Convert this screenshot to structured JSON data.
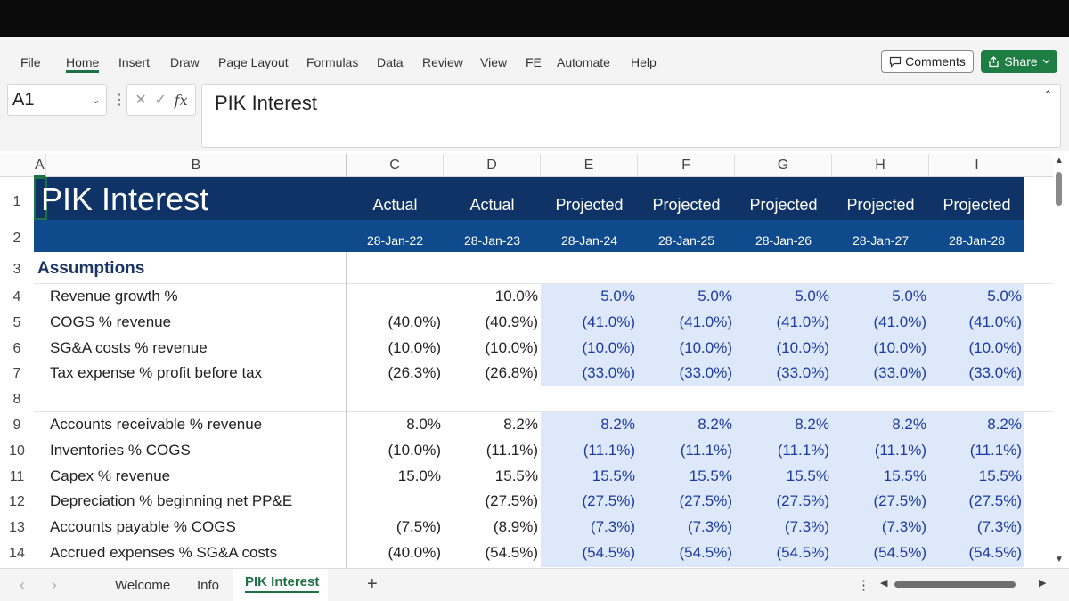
{
  "ribbon": {
    "tabs": [
      "File",
      "Home",
      "Insert",
      "Draw",
      "Page Layout",
      "Formulas",
      "Data",
      "Review",
      "View",
      "FE",
      "Automate",
      "Help"
    ],
    "comments_label": "Comments",
    "share_label": "Share"
  },
  "formula_bar": {
    "name_box": "A1",
    "fx_label": "fx",
    "content": "PIK Interest"
  },
  "columns": [
    "A",
    "B",
    "C",
    "D",
    "E",
    "F",
    "G",
    "H",
    "I"
  ],
  "rows": [
    "1",
    "2",
    "3",
    "4",
    "5",
    "6",
    "7",
    "8",
    "9",
    "10",
    "11",
    "12",
    "13",
    "14"
  ],
  "sheet": {
    "title": "PIK Interest",
    "headers": [
      "Actual",
      "Actual",
      "Projected",
      "Projected",
      "Projected",
      "Projected",
      "Projected"
    ],
    "dates": [
      "28-Jan-22",
      "28-Jan-23",
      "28-Jan-24",
      "28-Jan-25",
      "28-Jan-26",
      "28-Jan-27",
      "28-Jan-28"
    ],
    "section": "Assumptions",
    "labels": {
      "r4": "Revenue growth %",
      "r5": "COGS % revenue",
      "r6": "SG&A costs % revenue",
      "r7": "Tax expense % profit before tax",
      "r9": "Accounts receivable % revenue",
      "r10": "Inventories % COGS",
      "r11": "Capex % revenue",
      "r12": "Depreciation % beginning net PP&E",
      "r13": "Accounts payable % COGS",
      "r14": "Accrued expenses % SG&A costs"
    },
    "values": {
      "r4": [
        "",
        "10.0%",
        "5.0%",
        "5.0%",
        "5.0%",
        "5.0%",
        "5.0%"
      ],
      "r5": [
        "(40.0%)",
        "(40.9%)",
        "(41.0%)",
        "(41.0%)",
        "(41.0%)",
        "(41.0%)",
        "(41.0%)"
      ],
      "r6": [
        "(10.0%)",
        "(10.0%)",
        "(10.0%)",
        "(10.0%)",
        "(10.0%)",
        "(10.0%)",
        "(10.0%)"
      ],
      "r7": [
        "(26.3%)",
        "(26.8%)",
        "(33.0%)",
        "(33.0%)",
        "(33.0%)",
        "(33.0%)",
        "(33.0%)"
      ],
      "r9": [
        "8.0%",
        "8.2%",
        "8.2%",
        "8.2%",
        "8.2%",
        "8.2%",
        "8.2%"
      ],
      "r10": [
        "(10.0%)",
        "(11.1%)",
        "(11.1%)",
        "(11.1%)",
        "(11.1%)",
        "(11.1%)",
        "(11.1%)"
      ],
      "r11": [
        "15.0%",
        "15.5%",
        "15.5%",
        "15.5%",
        "15.5%",
        "15.5%",
        "15.5%"
      ],
      "r12": [
        "",
        "(27.5%)",
        "(27.5%)",
        "(27.5%)",
        "(27.5%)",
        "(27.5%)",
        "(27.5%)"
      ],
      "r13": [
        "(7.5%)",
        "(8.9%)",
        "(7.3%)",
        "(7.3%)",
        "(7.3%)",
        "(7.3%)",
        "(7.3%)"
      ],
      "r14": [
        "(40.0%)",
        "(54.5%)",
        "(54.5%)",
        "(54.5%)",
        "(54.5%)",
        "(54.5%)",
        "(54.5%)"
      ]
    }
  },
  "sheet_tabs": [
    "Welcome",
    "Info",
    "PIK Interest"
  ],
  "add_sheet": "+",
  "colors": {
    "header_dark": "#0f3366",
    "header_blue": "#0f4a8c",
    "projection_fill": "#dde9fb",
    "projection_text": "#1d3aa0",
    "excel_green": "#1e7d43"
  }
}
